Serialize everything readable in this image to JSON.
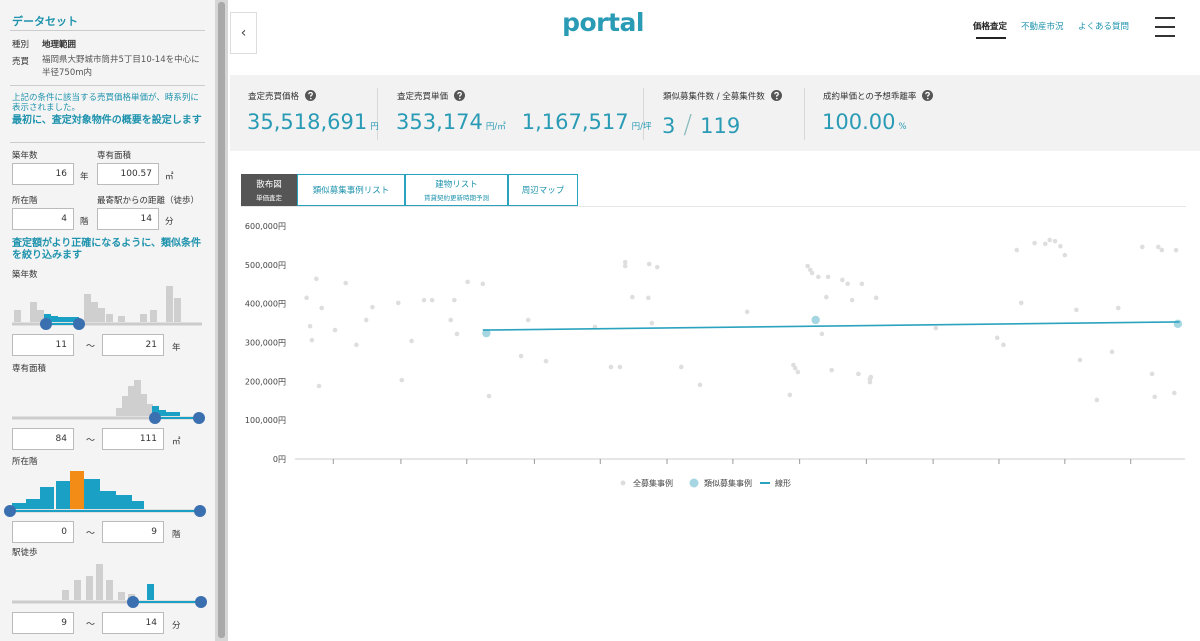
{
  "sidebar": {
    "title": "データセット",
    "rows": [
      [
        "種別",
        "地理範囲"
      ],
      [
        "売買",
        "福岡県大野城市筒井5丁目10-14を中心に半径750m内"
      ]
    ],
    "note": "上記の条件に該当する売買価格単価が、時系列に表示されました。",
    "heading": "最初に、査定対象物件の概要を設定します",
    "fields": [
      {
        "label": "築年数",
        "value": 16,
        "unit": "年"
      },
      {
        "label": "専有面積",
        "value": 100.57,
        "unit": "㎡"
      },
      {
        "label": "所在階",
        "value": 4,
        "unit": "階"
      },
      {
        "label": "最寄駅からの距離（徒歩）",
        "value": 14,
        "unit": "分"
      }
    ],
    "heading2": "査定額がより正確になるように、類似条件を絞り込みます",
    "range_separator": "〜",
    "filters": [
      {
        "label": "築年数",
        "min": 11,
        "max": 21,
        "unit": "年"
      },
      {
        "label": "専有面積",
        "min": 84,
        "max": 111,
        "unit": "㎡"
      },
      {
        "label": "所在階",
        "min": 0,
        "max": 9,
        "unit": "階"
      },
      {
        "label": "駅徒歩",
        "min": 9,
        "max": 14,
        "unit": "分"
      }
    ]
  },
  "header": {
    "logo": "portal",
    "nav": [
      "価格査定",
      "不動産市況",
      "よくある質問"
    ]
  },
  "stats": [
    {
      "label": "査定売買価格",
      "values": [
        {
          "value": "35,518,691",
          "unit": "円"
        }
      ]
    },
    {
      "label": "査定売買単価",
      "values": [
        {
          "value": "353,174",
          "unit": "円/㎡"
        },
        {
          "value": "1,167,517",
          "unit": "円/坪"
        }
      ]
    },
    {
      "label": "類似募集件数 / 全募集件数",
      "separator": "/",
      "values": [
        {
          "value": "3"
        },
        {
          "value": "119"
        }
      ]
    },
    {
      "label": "成約単価との予想乖離率",
      "values": [
        {
          "value": "100.00",
          "unit": "%"
        }
      ]
    }
  ],
  "tabs": [
    {
      "label": "散布図",
      "sub": "単価査定"
    },
    {
      "label": "類似募集事例リスト"
    },
    {
      "label": "建物リスト",
      "sub": "賃貸契約更新時期予測"
    },
    {
      "label": "周辺マップ"
    }
  ],
  "chart_data": {
    "type": "scatter",
    "xlim": [
      0,
      100
    ],
    "xticks": [
      4.3,
      11.9,
      19.3,
      26.9,
      34.3,
      41.8,
      49.2,
      56.7,
      64.2,
      71.7,
      79.1,
      86.5,
      93.9
    ],
    "ylim": [
      0,
      600000
    ],
    "yticks": [
      {
        "value": 0,
        "label": "0円"
      },
      {
        "value": 100000,
        "label": "100,000円"
      },
      {
        "value": 200000,
        "label": "200,000円"
      },
      {
        "value": 300000,
        "label": "300,000円"
      },
      {
        "value": 400000,
        "label": "400,000円"
      },
      {
        "value": 500000,
        "label": "500,000円"
      },
      {
        "value": 600000,
        "label": "600,000円"
      }
    ],
    "grid": false,
    "legend": "bottom",
    "series": [
      {
        "name": "全募集事例",
        "color": "#dedede",
        "x": [
          1.3,
          1.7,
          1.9,
          2.4,
          2.7,
          3.0,
          4.5,
          5.7,
          6.9,
          8.0,
          8.7,
          11.6,
          12.0,
          13.1,
          14.5,
          15.4,
          17.5,
          17.9,
          18.2,
          19.4,
          21.1,
          21.8,
          25.4,
          26.2,
          28.2,
          33.7,
          35.5,
          36.5,
          37.1,
          37.1,
          37.9,
          39.7,
          39.8,
          40.1,
          40.7,
          43.4,
          45.5,
          50.8,
          55.6,
          56.0,
          56.2,
          56.5,
          57.6,
          57.9,
          58.1,
          58.8,
          59.2,
          59.7,
          59.9,
          60.3,
          61.5,
          62.1,
          62.6,
          63.3,
          63.7,
          64.6,
          64.6,
          64.7,
          65.3,
          72.0,
          78.9,
          79.6,
          81.1,
          81.6,
          83.1,
          84.3,
          84.8,
          85.4,
          86.0,
          86.5,
          87.8,
          88.2,
          90.1,
          91.8,
          92.5,
          95.2,
          96.3,
          96.6,
          97.0,
          97.4,
          98.8,
          99.0
        ],
        "values": [
          415000,
          342000,
          306000,
          464000,
          188000,
          389000,
          332000,
          453000,
          294000,
          358000,
          391000,
          402000,
          203000,
          304000,
          409000,
          409000,
          358000,
          409000,
          322000,
          456000,
          451000,
          162000,
          265000,
          358000,
          252000,
          340000,
          237000,
          237000,
          507000,
          497000,
          417000,
          415000,
          502000,
          350000,
          494000,
          237000,
          191000,
          379000,
          165000,
          242000,
          234000,
          224000,
          497000,
          487000,
          479000,
          469000,
          322000,
          417000,
          469000,
          229000,
          461000,
          451000,
          409000,
          219000,
          451000,
          206000,
          198000,
          211000,
          415000,
          337000,
          312000,
          294000,
          538000,
          402000,
          556000,
          554000,
          564000,
          561000,
          548000,
          525000,
          384000,
          255000,
          152000,
          276000,
          389000,
          546000,
          219000,
          160000,
          546000,
          538000,
          170000,
          538000
        ]
      },
      {
        "name": "類似募集事例",
        "color": "#a6d6e2",
        "x": [
          21.5,
          58.5,
          99.2
        ],
        "values": [
          324000,
          358000,
          348000
        ]
      },
      {
        "name": "線形",
        "type": "line",
        "color": "#2ba3bf",
        "x": [
          21.1,
          99.4
        ],
        "values": [
          332000,
          353000
        ]
      }
    ]
  }
}
